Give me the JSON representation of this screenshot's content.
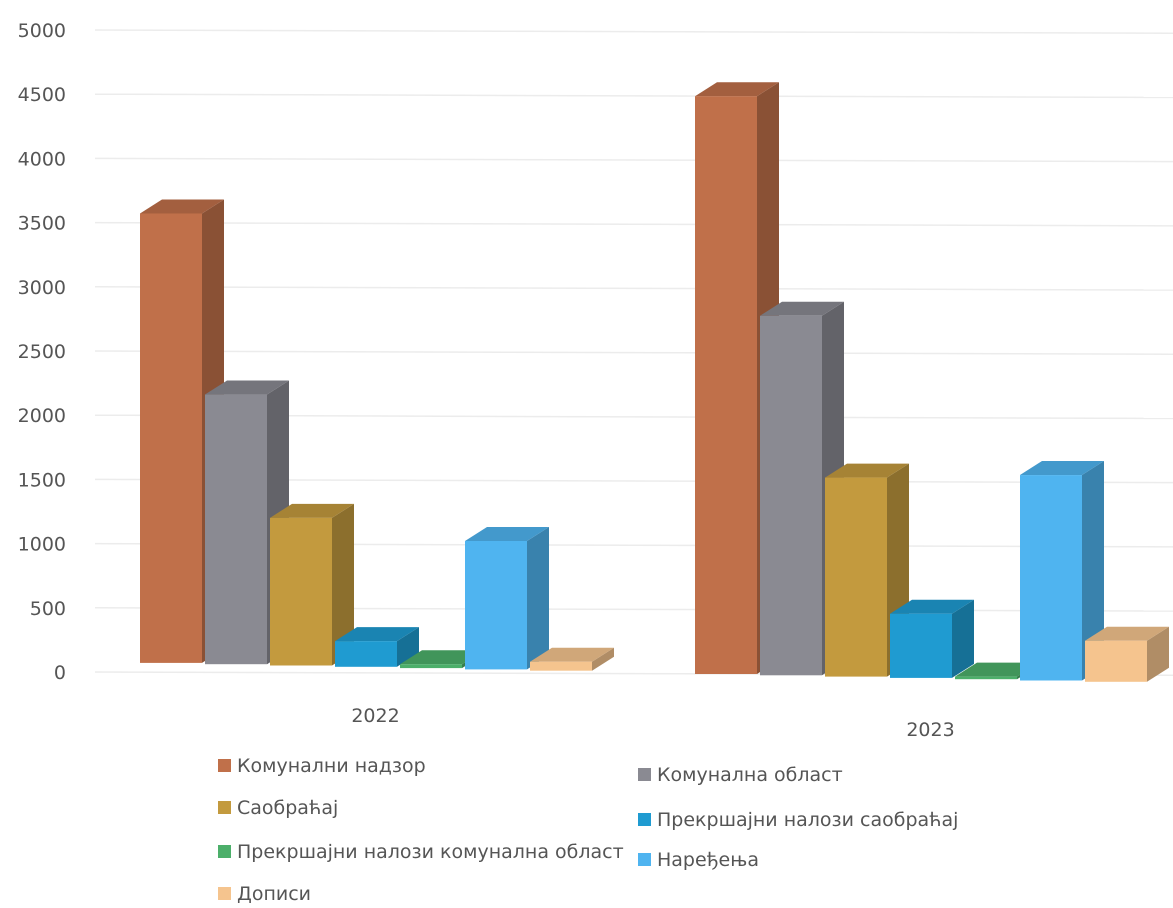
{
  "chart_data": {
    "type": "bar",
    "variant": "3d-clustered-column",
    "categories": [
      "2022",
      "2023"
    ],
    "series": [
      {
        "name": "Комунални надзор",
        "values": [
          3500,
          4500
        ],
        "color": "#c0704a"
      },
      {
        "name": "Комунална област",
        "values": [
          2100,
          2800
        ],
        "color": "#8a8a92"
      },
      {
        "name": "Саобраћај",
        "values": [
          1150,
          1550
        ],
        "color": "#c39a3e"
      },
      {
        "name": "Прекршајни налози саобраћај",
        "values": [
          200,
          500
        ],
        "color": "#1f9bd1"
      },
      {
        "name": "Прекршајни налози комунална област",
        "values": [
          30,
          20
        ],
        "color": "#4caf6a"
      },
      {
        "name": "Наређења",
        "values": [
          1000,
          1600
        ],
        "color": "#4fb4f0"
      },
      {
        "name": "Дописи",
        "values": [
          70,
          320
        ],
        "color": "#f5c48e"
      }
    ],
    "yticks": [
      "0",
      "500",
      "1000",
      "1500",
      "2000",
      "2500",
      "3000",
      "3500",
      "4000",
      "4500",
      "5000"
    ],
    "ylim": [
      0,
      5000
    ],
    "grid": true,
    "legend_position": "bottom"
  }
}
